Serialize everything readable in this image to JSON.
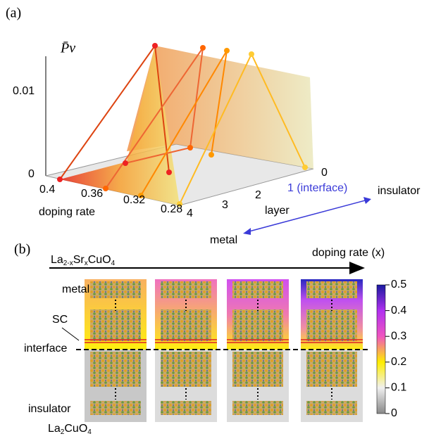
{
  "panel_a": {
    "label": "(a)",
    "y_axis_label": "P̄ν",
    "value_ticks": [
      "0.01",
      "0"
    ],
    "doping_axis": {
      "title": "doping rate",
      "ticks": [
        "0.4",
        "0.36",
        "0.32",
        "0.28"
      ]
    },
    "layer_axis": {
      "title": "layer",
      "ticks": [
        "4",
        "3",
        "2",
        "1 (interface)",
        "0"
      ]
    },
    "arrow_labels": {
      "right": "insulator",
      "left": "metal"
    }
  },
  "panel_b": {
    "label": "(b)",
    "top_formula": {
      "main": "La",
      "sub1": "2-x",
      "mid": "Sr",
      "sub2": "x",
      "end": "CuO",
      "sub3": "4"
    },
    "arrow_label": "doping rate (x)",
    "side_labels": {
      "metal": "metal",
      "sc": "SC",
      "interface": "interface",
      "insulator": "insulator"
    },
    "bottom_formula": {
      "main": "La",
      "sub1": "2",
      "end": "CuO",
      "sub2": "4"
    },
    "colorbar_ticks": [
      "0.5",
      "0.4",
      "0.3",
      "0.2",
      "0.1",
      "0"
    ]
  }
}
